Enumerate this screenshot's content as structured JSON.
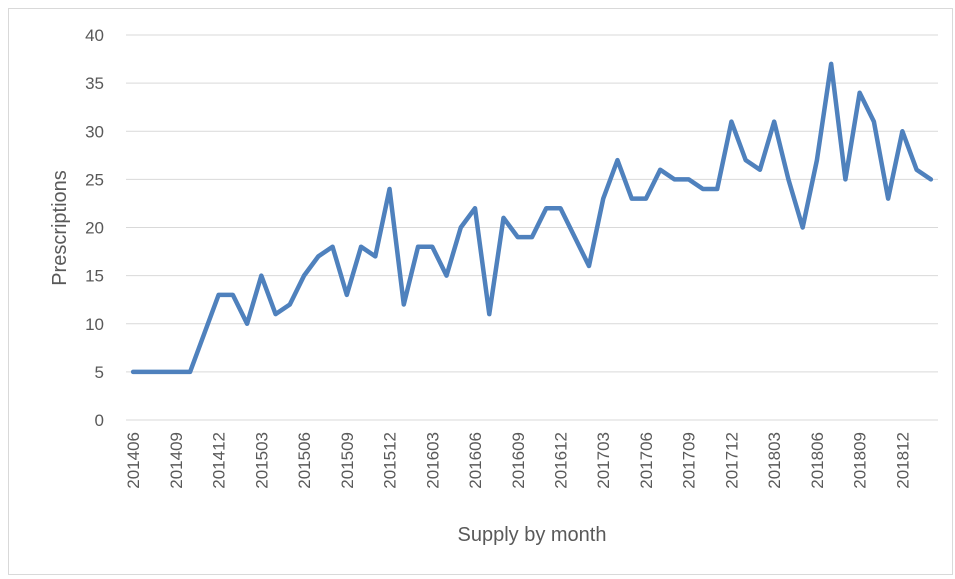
{
  "chart_data": {
    "type": "line",
    "x_label": "Supply by month",
    "y_label": "Prescriptions",
    "categories": [
      "201406",
      null,
      null,
      "201409",
      null,
      null,
      "201412",
      null,
      null,
      "201503",
      null,
      null,
      "201506",
      null,
      null,
      "201509",
      null,
      null,
      "201512",
      null,
      null,
      "201603",
      null,
      null,
      "201606",
      null,
      null,
      "201609",
      null,
      null,
      "201612",
      null,
      null,
      "201703",
      null,
      null,
      "201706",
      null,
      null,
      "201709",
      null,
      null,
      "201712",
      null,
      null,
      "201803",
      null,
      null,
      "201806",
      null,
      null,
      "201809",
      null,
      null,
      "201812",
      null,
      null
    ],
    "series": [
      {
        "name": "Prescriptions",
        "color": "#4f81bd",
        "values": [
          5,
          5,
          5,
          5,
          5,
          9,
          13,
          13,
          10,
          15,
          11,
          12,
          15,
          17,
          18,
          13,
          18,
          17,
          24,
          12,
          18,
          18,
          15,
          20,
          22,
          11,
          21,
          19,
          19,
          22,
          22,
          19,
          16,
          23,
          27,
          23,
          23,
          26,
          25,
          25,
          24,
          24,
          31,
          27,
          26,
          31,
          25,
          20,
          27,
          37,
          25,
          34,
          31,
          23,
          30,
          26,
          25
        ]
      }
    ],
    "ylim": [
      0,
      40
    ],
    "yticks": [
      0,
      5,
      10,
      15,
      20,
      25,
      30,
      35,
      40
    ],
    "grid": true
  }
}
